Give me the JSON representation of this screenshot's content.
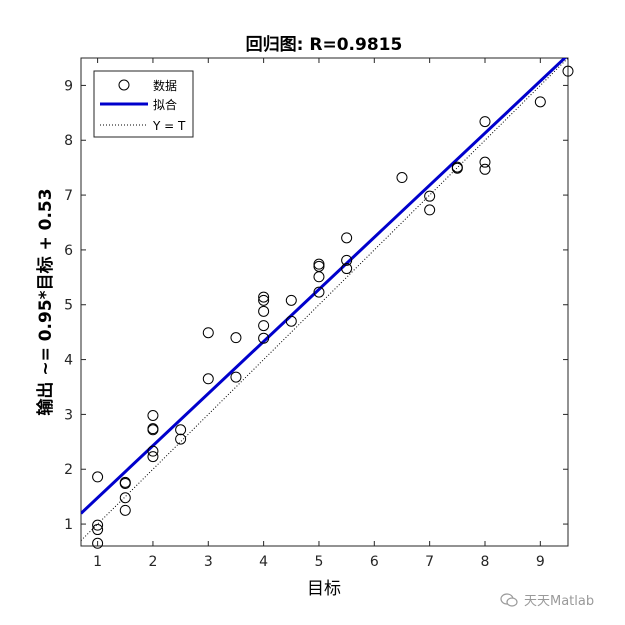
{
  "chart_data": {
    "type": "scatter",
    "title": "回归图: R=0.9815",
    "xlabel": "目标",
    "ylabel": "输出 ~= 0.95*目标 + 0.53",
    "xlim": [
      0.7,
      9.5
    ],
    "ylim": [
      0.6,
      9.5
    ],
    "xticks": [
      1,
      2,
      3,
      4,
      5,
      6,
      7,
      8,
      9
    ],
    "yticks": [
      1,
      2,
      3,
      4,
      5,
      6,
      7,
      8,
      9
    ],
    "grid": false,
    "legend_position": "top-left",
    "series": [
      {
        "name": "数据",
        "kind": "scatter",
        "marker": "open-circle",
        "color": "#000000",
        "x": [
          1,
          1,
          1,
          1,
          1.5,
          1.5,
          1.5,
          1.5,
          2,
          2,
          2,
          2,
          2,
          2.5,
          2.5,
          3,
          3,
          3.5,
          3.5,
          4,
          4,
          4,
          4,
          4,
          4.5,
          4.5,
          5,
          5,
          5,
          5,
          5.5,
          5.5,
          5.5,
          6.5,
          7,
          7,
          7.5,
          7.5,
          8,
          8,
          8,
          9,
          9.5
        ],
        "y": [
          0.65,
          0.9,
          0.98,
          1.86,
          1.25,
          1.48,
          1.74,
          1.76,
          2.23,
          2.33,
          2.72,
          2.74,
          2.98,
          2.55,
          2.72,
          3.65,
          4.49,
          3.68,
          4.4,
          4.39,
          4.62,
          4.88,
          5.08,
          5.14,
          4.7,
          5.08,
          5.23,
          5.51,
          5.7,
          5.74,
          5.66,
          5.81,
          6.22,
          7.32,
          6.73,
          6.98,
          7.49,
          7.51,
          7.47,
          7.6,
          8.34,
          8.7,
          9.26
        ]
      },
      {
        "name": "拟合",
        "kind": "line",
        "color": "#0000cc",
        "slope": 0.95,
        "intercept": 0.53
      },
      {
        "name": "Y = T",
        "kind": "line",
        "style": "dotted",
        "color": "#000000",
        "slope": 1,
        "intercept": 0
      }
    ]
  },
  "watermark": {
    "text": "天天Matlab"
  }
}
